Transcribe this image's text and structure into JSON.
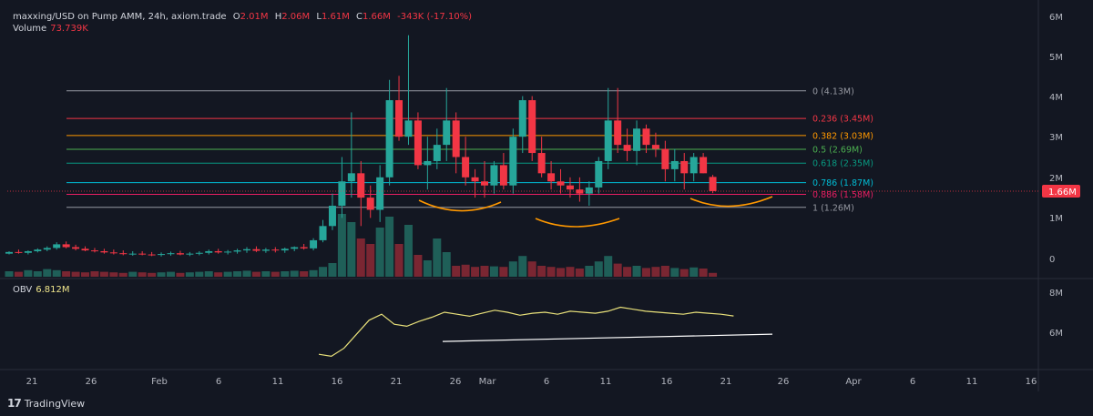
{
  "header": {
    "pair": "maxxing/USD on Pump AMM, 24h, axiom.trade",
    "o_label": "O",
    "o_value": "2.01M",
    "h_label": "H",
    "h_value": "2.06M",
    "l_label": "L",
    "l_value": "1.61M",
    "c_label": "C",
    "c_value": "1.66M",
    "change": "-343K (-17.10%)",
    "volume_label": "Volume",
    "volume_value": "73.739K"
  },
  "obv": {
    "label": "OBV",
    "value": "6.812M"
  },
  "brand": {
    "name": "TradingView",
    "logo_text": "17"
  },
  "colors": {
    "background": "#131722",
    "up": "#26a69a",
    "down": "#f23645",
    "grid_text": "#b2b5be",
    "obv_line": "#e8e07a",
    "trend": "#ffffff",
    "arc": "#ff9800"
  },
  "chart_data": {
    "type": "candlestick",
    "price_axis": {
      "ticks": [
        "6M",
        "5M",
        "4M",
        "3M",
        "2M",
        "1M",
        "0"
      ],
      "range": [
        0,
        6
      ],
      "current_price_label": "1.66M"
    },
    "obv_axis": {
      "ticks": [
        "8M",
        "6M"
      ]
    },
    "time_axis": {
      "labels": [
        "21",
        "26",
        "Feb",
        "6",
        "11",
        "16",
        "21",
        "26",
        "Mar",
        "6",
        "11",
        "16",
        "21",
        "26",
        "Apr",
        "6",
        "11",
        "16"
      ]
    },
    "fib_levels": [
      {
        "label": "0 (4.13M)",
        "value": 4.13,
        "color": "#9598a1"
      },
      {
        "label": "0.236 (3.45M)",
        "value": 3.45,
        "color": "#f23645"
      },
      {
        "label": "0.382 (3.03M)",
        "value": 3.03,
        "color": "#ff9800"
      },
      {
        "label": "0.5 (2.69M)",
        "value": 2.69,
        "color": "#4caf50"
      },
      {
        "label": "0.618 (2.35M)",
        "value": 2.35,
        "color": "#089981"
      },
      {
        "label": "0.786 (1.87M)",
        "value": 1.87,
        "color": "#00bcd4"
      },
      {
        "label": "0.886 (1.58M)",
        "value": 1.58,
        "color": "#e91e63"
      },
      {
        "label": "1 (1.26M)",
        "value": 1.26,
        "color": "#9598a1"
      }
    ],
    "candles": [
      [
        0.12,
        0.18,
        0.1,
        0.16
      ],
      [
        0.16,
        0.22,
        0.12,
        0.14
      ],
      [
        0.14,
        0.2,
        0.1,
        0.18
      ],
      [
        0.18,
        0.25,
        0.15,
        0.22
      ],
      [
        0.22,
        0.3,
        0.18,
        0.26
      ],
      [
        0.26,
        0.4,
        0.22,
        0.35
      ],
      [
        0.35,
        0.42,
        0.25,
        0.28
      ],
      [
        0.28,
        0.34,
        0.2,
        0.24
      ],
      [
        0.24,
        0.3,
        0.18,
        0.2
      ],
      [
        0.2,
        0.26,
        0.15,
        0.18
      ],
      [
        0.18,
        0.24,
        0.12,
        0.15
      ],
      [
        0.15,
        0.22,
        0.1,
        0.13
      ],
      [
        0.13,
        0.2,
        0.08,
        0.11
      ],
      [
        0.11,
        0.18,
        0.07,
        0.12
      ],
      [
        0.12,
        0.18,
        0.08,
        0.1
      ],
      [
        0.1,
        0.16,
        0.06,
        0.09
      ],
      [
        0.09,
        0.15,
        0.05,
        0.11
      ],
      [
        0.11,
        0.17,
        0.07,
        0.13
      ],
      [
        0.13,
        0.19,
        0.08,
        0.1
      ],
      [
        0.1,
        0.16,
        0.06,
        0.12
      ],
      [
        0.12,
        0.18,
        0.08,
        0.14
      ],
      [
        0.14,
        0.22,
        0.1,
        0.18
      ],
      [
        0.18,
        0.24,
        0.12,
        0.15
      ],
      [
        0.15,
        0.21,
        0.1,
        0.17
      ],
      [
        0.17,
        0.24,
        0.12,
        0.2
      ],
      [
        0.2,
        0.28,
        0.14,
        0.23
      ],
      [
        0.23,
        0.3,
        0.16,
        0.19
      ],
      [
        0.19,
        0.26,
        0.14,
        0.22
      ],
      [
        0.22,
        0.28,
        0.15,
        0.2
      ],
      [
        0.2,
        0.27,
        0.14,
        0.24
      ],
      [
        0.24,
        0.3,
        0.18,
        0.28
      ],
      [
        0.28,
        0.36,
        0.22,
        0.25
      ],
      [
        0.25,
        0.5,
        0.2,
        0.45
      ],
      [
        0.45,
        0.95,
        0.4,
        0.8
      ],
      [
        0.8,
        1.6,
        0.7,
        1.3
      ],
      [
        1.3,
        2.5,
        1.0,
        1.9
      ],
      [
        1.9,
        3.6,
        1.5,
        2.1
      ],
      [
        2.1,
        2.4,
        0.8,
        1.5
      ],
      [
        1.5,
        1.8,
        1.0,
        1.2
      ],
      [
        1.2,
        2.3,
        0.9,
        2.0
      ],
      [
        2.0,
        4.4,
        1.8,
        3.9
      ],
      [
        3.9,
        4.5,
        2.9,
        3.0
      ],
      [
        3.0,
        5.5,
        2.8,
        3.4
      ],
      [
        3.4,
        3.6,
        2.2,
        2.3
      ],
      [
        2.3,
        3.0,
        1.7,
        2.4
      ],
      [
        2.4,
        3.2,
        2.2,
        2.8
      ],
      [
        2.8,
        4.2,
        2.4,
        3.4
      ],
      [
        3.4,
        3.6,
        2.1,
        2.5
      ],
      [
        2.5,
        3.0,
        1.8,
        2.0
      ],
      [
        2.0,
        2.2,
        1.5,
        1.9
      ],
      [
        1.9,
        2.4,
        1.5,
        1.8
      ],
      [
        1.8,
        2.4,
        1.6,
        2.3
      ],
      [
        2.3,
        2.6,
        1.7,
        1.8
      ],
      [
        1.8,
        3.2,
        1.6,
        3.0
      ],
      [
        3.0,
        4.0,
        2.6,
        3.9
      ],
      [
        3.9,
        4.0,
        2.4,
        2.6
      ],
      [
        2.6,
        3.0,
        2.0,
        2.1
      ],
      [
        2.1,
        2.4,
        1.7,
        1.9
      ],
      [
        1.9,
        2.2,
        1.6,
        1.8
      ],
      [
        1.8,
        2.0,
        1.5,
        1.7
      ],
      [
        1.7,
        2.0,
        1.4,
        1.6
      ],
      [
        1.6,
        1.9,
        1.3,
        1.75
      ],
      [
        1.75,
        2.5,
        1.6,
        2.4
      ],
      [
        2.4,
        4.2,
        2.2,
        3.4
      ],
      [
        3.4,
        4.2,
        2.6,
        2.8
      ],
      [
        2.8,
        3.2,
        2.4,
        2.65
      ],
      [
        2.65,
        3.4,
        2.3,
        3.2
      ],
      [
        3.2,
        3.3,
        2.6,
        2.8
      ],
      [
        2.8,
        3.1,
        2.5,
        2.7
      ],
      [
        2.7,
        2.9,
        1.9,
        2.2
      ],
      [
        2.2,
        2.7,
        1.9,
        2.4
      ],
      [
        2.4,
        2.6,
        1.7,
        2.1
      ],
      [
        2.1,
        2.6,
        1.9,
        2.5
      ],
      [
        2.5,
        2.6,
        2.1,
        2.1
      ],
      [
        2.01,
        2.06,
        1.61,
        1.66
      ]
    ],
    "volume": [
      0.1,
      0.09,
      0.12,
      0.1,
      0.14,
      0.12,
      0.1,
      0.09,
      0.08,
      0.1,
      0.09,
      0.08,
      0.07,
      0.09,
      0.08,
      0.07,
      0.08,
      0.09,
      0.07,
      0.08,
      0.09,
      0.1,
      0.08,
      0.09,
      0.1,
      0.11,
      0.09,
      0.1,
      0.09,
      0.1,
      0.11,
      0.1,
      0.12,
      0.18,
      0.25,
      1.15,
      1.0,
      0.7,
      0.6,
      0.9,
      1.1,
      0.6,
      0.95,
      0.4,
      0.3,
      0.7,
      0.45,
      0.2,
      0.22,
      0.18,
      0.2,
      0.19,
      0.18,
      0.28,
      0.38,
      0.28,
      0.2,
      0.18,
      0.16,
      0.18,
      0.15,
      0.2,
      0.28,
      0.38,
      0.24,
      0.18,
      0.2,
      0.16,
      0.18,
      0.2,
      0.16,
      0.14,
      0.17,
      0.15,
      0.07
    ],
    "obv": [
      4.9,
      4.8,
      5.2,
      5.9,
      6.6,
      6.9,
      6.4,
      6.3,
      6.55,
      6.75,
      7.0,
      6.9,
      6.8,
      6.95,
      7.1,
      7.0,
      6.85,
      6.95,
      7.0,
      6.9,
      7.05,
      7.0,
      6.95,
      7.05,
      7.25,
      7.15,
      7.05,
      7.0,
      6.95,
      6.9,
      7.0,
      6.95,
      6.9,
      6.812
    ],
    "obv_trend": [
      [
        0.0,
        6.45
      ],
      [
        1.0,
        6.72
      ]
    ]
  }
}
